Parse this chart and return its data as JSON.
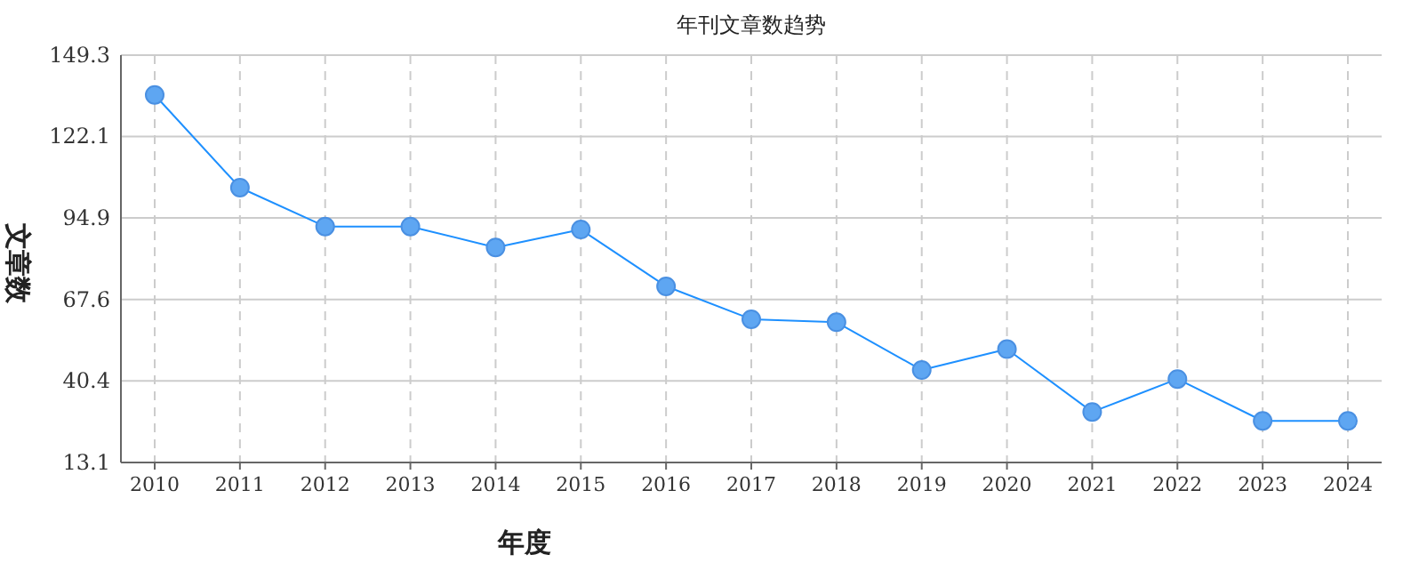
{
  "chart_data": {
    "type": "line",
    "title": "年刊文章数趋势",
    "xlabel": "年度",
    "ylabel": "文章数",
    "categories": [
      "2010",
      "2011",
      "2012",
      "2013",
      "2014",
      "2015",
      "2016",
      "2017",
      "2018",
      "2019",
      "2020",
      "2021",
      "2022",
      "2023",
      "2024"
    ],
    "series": [
      {
        "color": "#1e90ff",
        "values": [
          136,
          105,
          92,
          92,
          85,
          91,
          72,
          61,
          60,
          44,
          51,
          30,
          41,
          27,
          27
        ]
      }
    ],
    "ylim": [
      13.1,
      149.3
    ],
    "yticks": [
      13.1,
      40.4,
      67.6,
      94.9,
      122.1,
      149.3
    ],
    "grid": true,
    "marker": "circle"
  }
}
